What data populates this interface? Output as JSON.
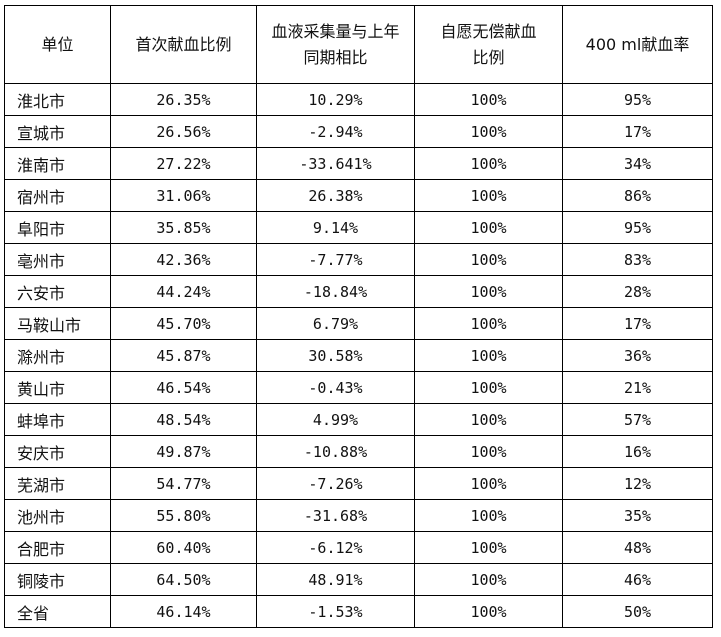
{
  "table": {
    "headers": [
      "单位",
      "首次献血比例",
      "血液采集量与上年同期相比",
      "自愿无偿献血比例",
      "400 ml献血率"
    ],
    "rows": [
      [
        "淮北市",
        "26.35%",
        "10.29%",
        "100%",
        "95%"
      ],
      [
        "宣城市",
        "26.56%",
        "-2.94%",
        "100%",
        "17%"
      ],
      [
        "淮南市",
        "27.22%",
        "-33.641%",
        "100%",
        "34%"
      ],
      [
        "宿州市",
        "31.06%",
        "26.38%",
        "100%",
        "86%"
      ],
      [
        "阜阳市",
        "35.85%",
        "9.14%",
        "100%",
        "95%"
      ],
      [
        "亳州市",
        "42.36%",
        "-7.77%",
        "100%",
        "83%"
      ],
      [
        "六安市",
        "44.24%",
        "-18.84%",
        "100%",
        "28%"
      ],
      [
        "马鞍山市",
        "45.70%",
        "6.79%",
        "100%",
        "17%"
      ],
      [
        "滁州市",
        "45.87%",
        "30.58%",
        "100%",
        "36%"
      ],
      [
        "黄山市",
        "46.54%",
        "-0.43%",
        "100%",
        "21%"
      ],
      [
        "蚌埠市",
        "48.54%",
        "4.99%",
        "100%",
        "57%"
      ],
      [
        "安庆市",
        "49.87%",
        "-10.88%",
        "100%",
        "16%"
      ],
      [
        "芜湖市",
        "54.77%",
        "-7.26%",
        "100%",
        "12%"
      ],
      [
        "池州市",
        "55.80%",
        "-31.68%",
        "100%",
        "35%"
      ],
      [
        "合肥市",
        "60.40%",
        "-6.12%",
        "100%",
        "48%"
      ],
      [
        "铜陵市",
        "64.50%",
        "48.91%",
        "100%",
        "46%"
      ],
      [
        "全省",
        "46.14%",
        "-1.53%",
        "100%",
        "50%"
      ]
    ]
  }
}
